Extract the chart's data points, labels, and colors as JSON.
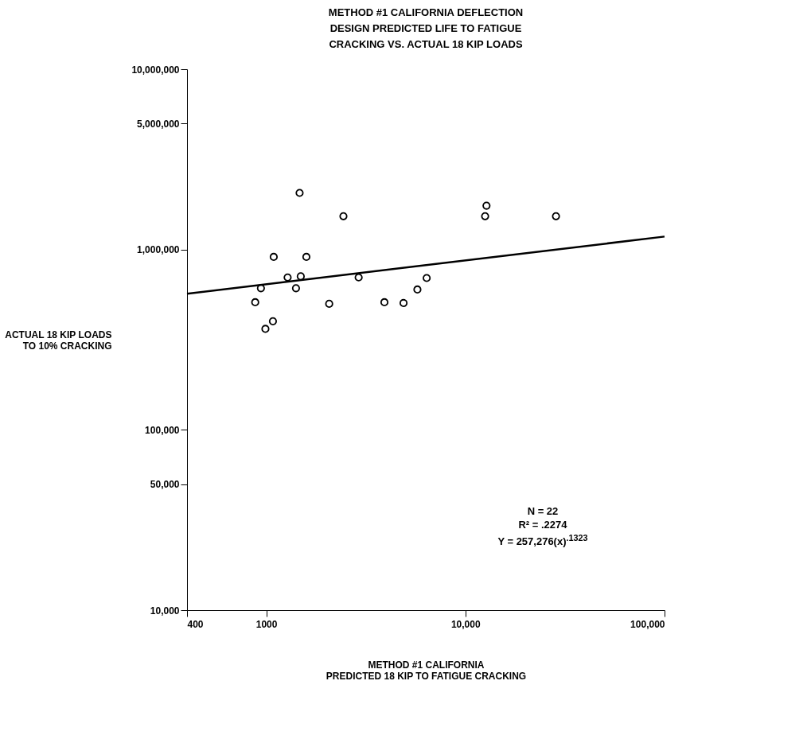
{
  "chart_data": {
    "type": "scatter",
    "title": "METHOD #1 CALIFORNIA DEFLECTION\nDESIGN PREDICTED LIFE TO FATIGUE\nCRACKING VS. ACTUAL 18 KIP LOADS",
    "xlabel": "METHOD #1 CALIFORNIA\nPREDICTED 18 KIP TO FATIGUE CRACKING",
    "ylabel": "ACTUAL 18 KIP LOADS\nTO 10% CRACKING",
    "log": "xy",
    "grid": false,
    "marker": "circle",
    "line_style": "solid",
    "xlim": [
      400,
      100000
    ],
    "xticks": [
      400,
      1000,
      {
        "value": 10000,
        "label": "10,000"
      },
      {
        "value": 100000,
        "label": "100,000"
      }
    ],
    "ylim": [
      10000,
      10000000
    ],
    "yticks": [
      {
        "value": 10000,
        "label": "10,000"
      },
      {
        "value": 50000,
        "label": "50,000"
      },
      {
        "value": 100000,
        "label": "100,000"
      },
      {
        "value": 1000000,
        "label": "1,000,000"
      },
      {
        "value": 5000000,
        "label": "5,000,000"
      },
      {
        "value": 10000000,
        "label": "10,000,000"
      }
    ],
    "series": [
      {
        "color": "#000000",
        "x": [
          1470,
          2440,
          1090,
          1590,
          1280,
          1490,
          940,
          1410,
          2910,
          880,
          2070,
          3920,
          4890,
          5740,
          6390,
          1080,
          990,
          12760,
          12560,
          28500
        ],
        "values": [
          2060000,
          1530000,
          910000,
          910000,
          700000,
          710000,
          610000,
          610000,
          700000,
          510000,
          500000,
          510000,
          505000,
          600000,
          695000,
          400000,
          363000,
          1750000,
          1530000,
          1530000
        ]
      },
      {
        "type": "line",
        "marker": "none",
        "color": "#000000",
        "x": [
          400,
          100000
        ],
        "values": [
          568000,
          1180000
        ]
      }
    ],
    "annotations": [
      "N = 22",
      "R² = .2274",
      "Y = 257,276(x)$^{.1323}$"
    ]
  }
}
